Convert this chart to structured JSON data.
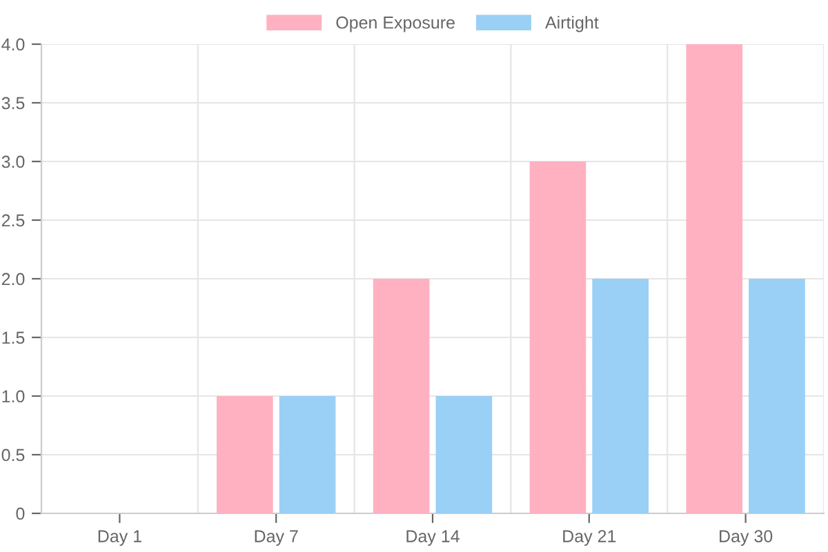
{
  "chart_data": {
    "type": "bar",
    "categories": [
      "Day 1",
      "Day 7",
      "Day 14",
      "Day 21",
      "Day 30"
    ],
    "series": [
      {
        "name": "Open Exposure",
        "color": "#ffb1c1",
        "values": [
          0,
          1,
          2,
          3,
          4
        ]
      },
      {
        "name": "Airtight",
        "color": "#9ad0f5",
        "values": [
          0,
          1,
          1,
          2,
          2
        ]
      }
    ],
    "ylim": [
      0,
      4
    ],
    "yticks": [
      0,
      {
        "value": 0.5,
        "label": "0.5"
      },
      {
        "value": 1,
        "label": "1.0"
      },
      {
        "value": 1.5,
        "label": "1.5"
      },
      {
        "value": 2,
        "label": "2.0"
      },
      {
        "value": 2.5,
        "label": "2.5"
      },
      {
        "value": 3,
        "label": "3.0"
      },
      {
        "value": 3.5,
        "label": "3.5"
      },
      {
        "value": 4,
        "label": "4.0"
      }
    ],
    "grid": true,
    "legend": "top"
  }
}
